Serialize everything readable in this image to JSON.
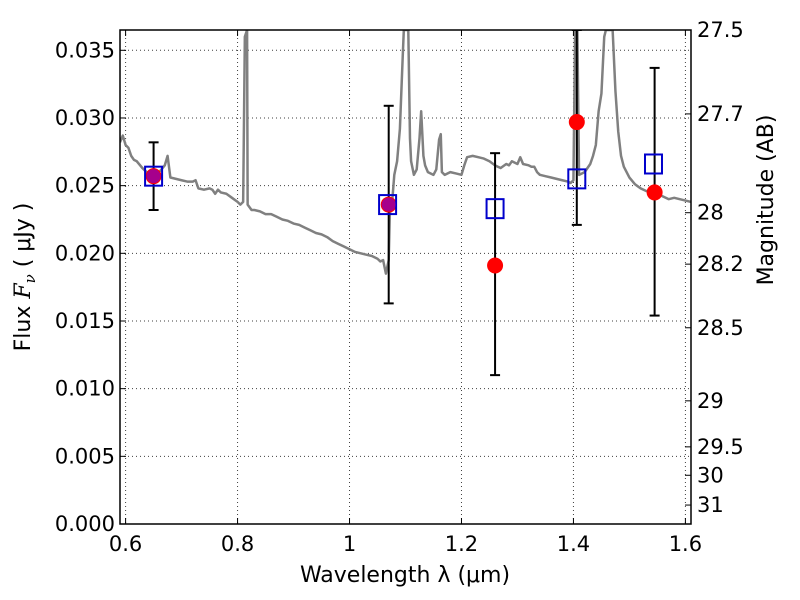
{
  "chart_data": {
    "type": "scatter",
    "xlabel": "Wavelength  λ (μm)",
    "ylabel_left": {
      "prefix": "Flux  ",
      "symbol": "F",
      "subscript": "ν",
      "unit": "  ( μJy )"
    },
    "ylabel_right": "Magnitude (AB)",
    "xlim": [
      0.59,
      1.61
    ],
    "ylim": [
      0.0,
      0.0365
    ],
    "grid": true,
    "x_ticks": [
      {
        "value": 0.6,
        "label": "0.6"
      },
      {
        "value": 0.8,
        "label": "0.8"
      },
      {
        "value": 1.0,
        "label": "1"
      },
      {
        "value": 1.2,
        "label": "1.2"
      },
      {
        "value": 1.4,
        "label": "1.4"
      },
      {
        "value": 1.6,
        "label": "1.6"
      }
    ],
    "y_ticks": [
      {
        "value": 0.0,
        "label": "0.000"
      },
      {
        "value": 0.005,
        "label": "0.005"
      },
      {
        "value": 0.01,
        "label": "0.010"
      },
      {
        "value": 0.015,
        "label": "0.015"
      },
      {
        "value": 0.02,
        "label": "0.020"
      },
      {
        "value": 0.025,
        "label": "0.025"
      },
      {
        "value": 0.03,
        "label": "0.030"
      },
      {
        "value": 0.035,
        "label": "0.035"
      }
    ],
    "right_ticks": [
      {
        "flux": 0.0365,
        "label": "27.5"
      },
      {
        "flux": 0.0303,
        "label": "27.7"
      },
      {
        "flux": 0.023,
        "label": "28"
      },
      {
        "flux": 0.0192,
        "label": "28.2"
      },
      {
        "flux": 0.0145,
        "label": "28.5"
      },
      {
        "flux": 0.0091,
        "label": "29"
      },
      {
        "flux": 0.0057,
        "label": "29.5"
      },
      {
        "flux": 0.0036,
        "label": "30"
      },
      {
        "flux": 0.0014,
        "label": "31"
      }
    ],
    "series": [
      {
        "role": "model spectrum",
        "style": "line",
        "color": "#808080",
        "points": [
          [
            0.59,
            0.0282
          ],
          [
            0.595,
            0.0287
          ],
          [
            0.6,
            0.028
          ],
          [
            0.605,
            0.0278
          ],
          [
            0.61,
            0.0272
          ],
          [
            0.615,
            0.0269
          ],
          [
            0.62,
            0.0268
          ],
          [
            0.63,
            0.0263
          ],
          [
            0.64,
            0.0259
          ],
          [
            0.65,
            0.0257
          ],
          [
            0.66,
            0.026
          ],
          [
            0.67,
            0.0265
          ],
          [
            0.675,
            0.0272
          ],
          [
            0.68,
            0.0256
          ],
          [
            0.69,
            0.0255
          ],
          [
            0.7,
            0.0254
          ],
          [
            0.71,
            0.0253
          ],
          [
            0.72,
            0.0253
          ],
          [
            0.725,
            0.0254
          ],
          [
            0.73,
            0.0248
          ],
          [
            0.74,
            0.0247
          ],
          [
            0.75,
            0.0248
          ],
          [
            0.755,
            0.0247
          ],
          [
            0.76,
            0.0244
          ],
          [
            0.765,
            0.0247
          ],
          [
            0.77,
            0.0245
          ],
          [
            0.78,
            0.0244
          ],
          [
            0.79,
            0.0241
          ],
          [
            0.8,
            0.0238
          ],
          [
            0.805,
            0.0236
          ],
          [
            0.81,
            0.0238
          ],
          [
            0.813,
            0.036
          ],
          [
            0.817,
            0.0365
          ],
          [
            0.818,
            0.0236
          ],
          [
            0.825,
            0.0232
          ],
          [
            0.83,
            0.0232
          ],
          [
            0.84,
            0.0231
          ],
          [
            0.85,
            0.0229
          ],
          [
            0.86,
            0.0229
          ],
          [
            0.87,
            0.0227
          ],
          [
            0.88,
            0.0225
          ],
          [
            0.89,
            0.0224
          ],
          [
            0.9,
            0.0222
          ],
          [
            0.91,
            0.0221
          ],
          [
            0.92,
            0.0219
          ],
          [
            0.93,
            0.0217
          ],
          [
            0.94,
            0.0215
          ],
          [
            0.95,
            0.0214
          ],
          [
            0.96,
            0.0212
          ],
          [
            0.97,
            0.0209
          ],
          [
            0.98,
            0.0207
          ],
          [
            0.99,
            0.0205
          ],
          [
            1.0,
            0.0203
          ],
          [
            1.01,
            0.0201
          ],
          [
            1.02,
            0.02
          ],
          [
            1.03,
            0.0199
          ],
          [
            1.04,
            0.0198
          ],
          [
            1.05,
            0.0196
          ],
          [
            1.055,
            0.0194
          ],
          [
            1.06,
            0.0195
          ],
          [
            1.065,
            0.0185
          ],
          [
            1.07,
            0.0195
          ],
          [
            1.072,
            0.023
          ],
          [
            1.075,
            0.0232
          ],
          [
            1.08,
            0.0258
          ],
          [
            1.085,
            0.0268
          ],
          [
            1.09,
            0.0292
          ],
          [
            1.095,
            0.0345
          ],
          [
            1.097,
            0.0365
          ],
          [
            1.105,
            0.0365
          ],
          [
            1.108,
            0.0285
          ],
          [
            1.11,
            0.0268
          ],
          [
            1.115,
            0.0258
          ],
          [
            1.12,
            0.0262
          ],
          [
            1.125,
            0.0285
          ],
          [
            1.128,
            0.0305
          ],
          [
            1.132,
            0.0272
          ],
          [
            1.135,
            0.0265
          ],
          [
            1.14,
            0.026
          ],
          [
            1.15,
            0.0258
          ],
          [
            1.155,
            0.0262
          ],
          [
            1.16,
            0.0284
          ],
          [
            1.163,
            0.0288
          ],
          [
            1.165,
            0.026
          ],
          [
            1.17,
            0.0258
          ],
          [
            1.18,
            0.026
          ],
          [
            1.19,
            0.0259
          ],
          [
            1.2,
            0.0258
          ],
          [
            1.205,
            0.0265
          ],
          [
            1.21,
            0.0271
          ],
          [
            1.22,
            0.0272
          ],
          [
            1.23,
            0.0271
          ],
          [
            1.24,
            0.027
          ],
          [
            1.25,
            0.0268
          ],
          [
            1.26,
            0.0265
          ],
          [
            1.265,
            0.0264
          ],
          [
            1.27,
            0.0263
          ],
          [
            1.28,
            0.0266
          ],
          [
            1.285,
            0.0265
          ],
          [
            1.29,
            0.0268
          ],
          [
            1.3,
            0.0266
          ],
          [
            1.305,
            0.0271
          ],
          [
            1.31,
            0.0266
          ],
          [
            1.32,
            0.0265
          ],
          [
            1.325,
            0.0264
          ],
          [
            1.33,
            0.0264
          ],
          [
            1.335,
            0.026
          ],
          [
            1.34,
            0.0258
          ],
          [
            1.35,
            0.0257
          ],
          [
            1.36,
            0.0256
          ],
          [
            1.37,
            0.0255
          ],
          [
            1.38,
            0.0254
          ],
          [
            1.39,
            0.0253
          ],
          [
            1.395,
            0.0252
          ],
          [
            1.4,
            0.0254
          ],
          [
            1.403,
            0.0365
          ],
          [
            1.407,
            0.0365
          ],
          [
            1.41,
            0.0258
          ],
          [
            1.42,
            0.026
          ],
          [
            1.43,
            0.0266
          ],
          [
            1.435,
            0.0272
          ],
          [
            1.44,
            0.028
          ],
          [
            1.445,
            0.0305
          ],
          [
            1.45,
            0.0318
          ],
          [
            1.455,
            0.036
          ],
          [
            1.458,
            0.0365
          ],
          [
            1.47,
            0.0365
          ],
          [
            1.475,
            0.032
          ],
          [
            1.48,
            0.029
          ],
          [
            1.485,
            0.0272
          ],
          [
            1.49,
            0.0264
          ],
          [
            1.5,
            0.0256
          ],
          [
            1.51,
            0.0251
          ],
          [
            1.52,
            0.0248
          ],
          [
            1.53,
            0.0246
          ],
          [
            1.54,
            0.0245
          ],
          [
            1.55,
            0.0244
          ],
          [
            1.56,
            0.0242
          ],
          [
            1.57,
            0.024
          ],
          [
            1.58,
            0.0241
          ],
          [
            1.59,
            0.024
          ],
          [
            1.6,
            0.0239
          ],
          [
            1.61,
            0.0238
          ]
        ]
      },
      {
        "role": "model photometry",
        "style": "square-marker",
        "color": "#0000cc",
        "points": [
          [
            0.65,
            0.0257
          ],
          [
            1.068,
            0.0236
          ],
          [
            1.26,
            0.0233
          ],
          [
            1.406,
            0.0255
          ],
          [
            1.543,
            0.0266
          ]
        ]
      },
      {
        "role": "observed photometry",
        "style": "circle-marker-with-errorbars",
        "color": "#ff0000",
        "points": [
          {
            "x": 0.65,
            "y": 0.0257,
            "lo": 0.0232,
            "hi": 0.0282
          },
          {
            "x": 1.07,
            "y": 0.0236,
            "lo": 0.0163,
            "hi": 0.0309
          },
          {
            "x": 1.26,
            "y": 0.0191,
            "lo": 0.011,
            "hi": 0.0274
          },
          {
            "x": 1.406,
            "y": 0.0297,
            "lo": 0.0221,
            "hi": 0.0365
          },
          {
            "x": 1.545,
            "y": 0.0245,
            "lo": 0.0154,
            "hi": 0.0337
          }
        ]
      }
    ]
  }
}
